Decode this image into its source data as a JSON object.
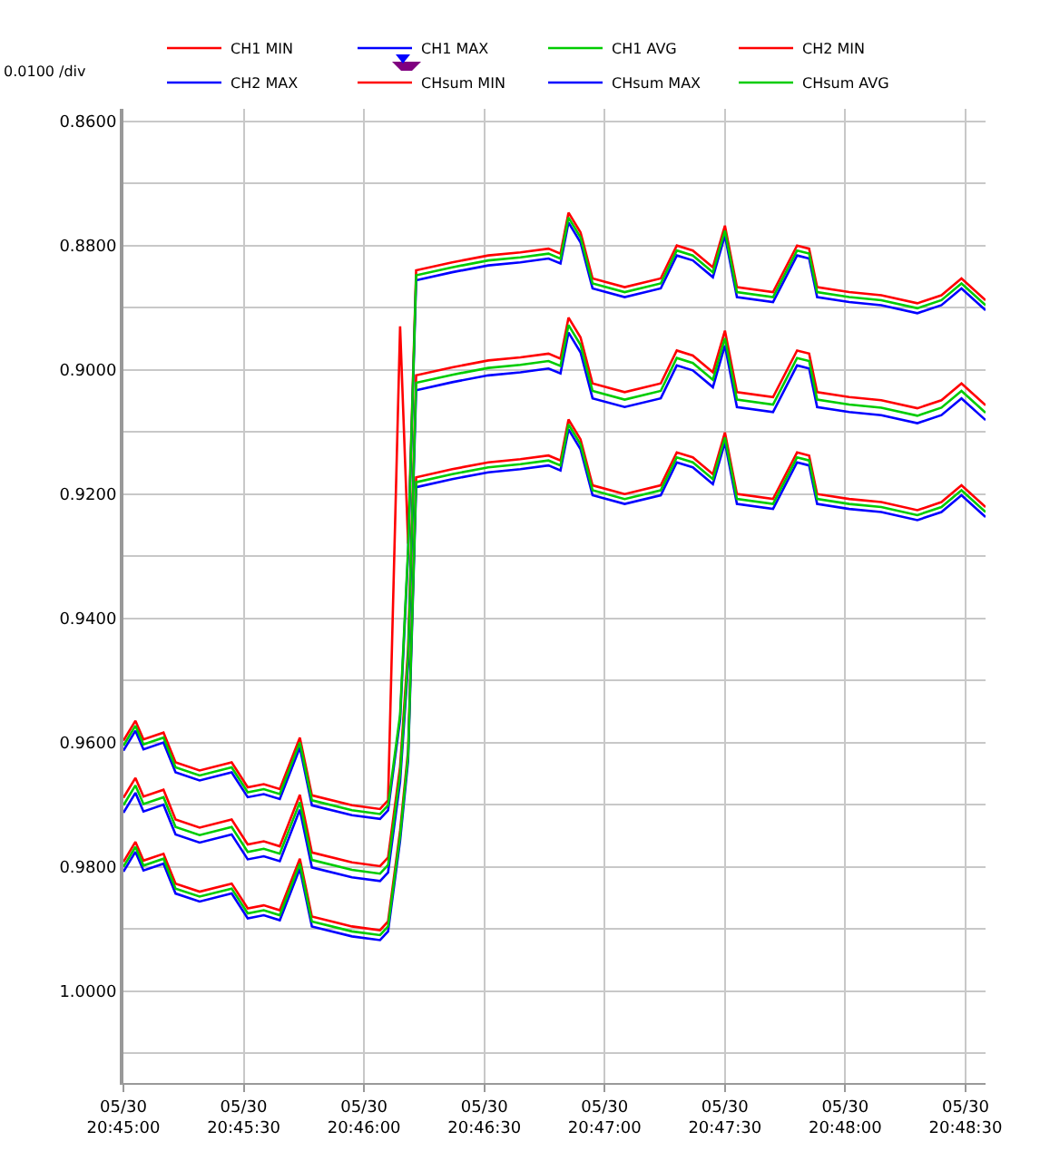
{
  "chart_data": {
    "type": "line",
    "annotations": [
      "0.0100 /div"
    ],
    "x": [
      "--05-30T20:45:00",
      "--05-30T20:45:03",
      "--05-30T20:45:05",
      "--05-30T20:45:10",
      "--05-30T20:45:13",
      "--05-30T20:45:19",
      "--05-30T20:45:27",
      "--05-30T20:45:31",
      "--05-30T20:45:35",
      "--05-30T20:45:39",
      "--05-30T20:45:44",
      "--05-30T20:45:47",
      "--05-30T20:45:57",
      "--05-30T20:46:04",
      "--05-30T20:46:06",
      "--05-30T20:46:09",
      "--05-30T20:46:11",
      "--05-30T20:46:13",
      "--05-30T20:46:22",
      "--05-30T20:46:31",
      "--05-30T20:46:39",
      "--05-30T20:46:46",
      "--05-30T20:46:49",
      "--05-30T20:46:51",
      "--05-30T20:46:54",
      "--05-30T20:46:57",
      "--05-30T20:47:05",
      "--05-30T20:47:14",
      "--05-30T20:47:18",
      "--05-30T20:47:22",
      "--05-30T20:47:27",
      "--05-30T20:47:30",
      "--05-30T20:47:33",
      "--05-30T20:47:42",
      "--05-30T20:47:48",
      "--05-30T20:47:51",
      "--05-30T20:47:53",
      "--05-30T20:48:01",
      "--05-30T20:48:09",
      "--05-30T20:48:18",
      "--05-30T20:48:24",
      "--05-30T20:48:29",
      "--05-30T20:48:35"
    ],
    "xlim": [
      "--05-30T20:45:00",
      "--05-30T20:48:35"
    ],
    "xticks": [
      {
        "value": "--05-30T20:45:00",
        "label": "05/30\n20:45:00"
      },
      {
        "value": "--05-30T20:45:30",
        "label": "05/30\n20:45:30"
      },
      {
        "value": "--05-30T20:46:00",
        "label": "05/30\n20:46:00"
      },
      {
        "value": "--05-30T20:46:30",
        "label": "05/30\n20:46:30"
      },
      {
        "value": "--05-30T20:47:00",
        "label": "05/30\n20:47:00"
      },
      {
        "value": "--05-30T20:47:30",
        "label": "05/30\n20:47:30"
      },
      {
        "value": "--05-30T20:48:00",
        "label": "05/30\n20:48:00"
      },
      {
        "value": "--05-30T20:48:30",
        "label": "05/30\n20:48:30"
      }
    ],
    "ylim": [
      1.0148,
      0.858
    ],
    "yticks": [
      {
        "value": 0.86,
        "label": "0.8600"
      },
      {
        "value": 0.87,
        "label": null
      },
      {
        "value": 0.88,
        "label": "0.8800"
      },
      {
        "value": 0.89,
        "label": null
      },
      {
        "value": 0.9,
        "label": "0.9000"
      },
      {
        "value": 0.91,
        "label": null
      },
      {
        "value": 0.92,
        "label": "0.9200"
      },
      {
        "value": 0.93,
        "label": null
      },
      {
        "value": 0.94,
        "label": "0.9400"
      },
      {
        "value": 0.95,
        "label": null
      },
      {
        "value": 0.96,
        "label": "0.9600"
      },
      {
        "value": 0.97,
        "label": null
      },
      {
        "value": 0.98,
        "label": "0.9800"
      },
      {
        "value": 0.99,
        "label": null
      },
      {
        "value": 1.0,
        "label": "1.0000"
      },
      {
        "value": 1.01,
        "label": null
      }
    ],
    "grid": true,
    "legend": "top",
    "marker": "none",
    "line_style": "solid",
    "series": [
      {
        "name": "CH1 MIN",
        "color": "#ff0000",
        "values": [
          0.9597,
          0.9565,
          0.9595,
          0.9584,
          0.9632,
          0.9645,
          0.9632,
          0.9672,
          0.9667,
          0.9675,
          0.9592,
          0.9685,
          0.9701,
          0.9707,
          0.9693,
          0.893,
          0.928,
          0.884,
          0.8827,
          0.8816,
          0.8811,
          0.8805,
          0.8813,
          0.8747,
          0.8779,
          0.8853,
          0.8867,
          0.8853,
          0.88,
          0.8808,
          0.8835,
          0.8768,
          0.8867,
          0.8875,
          0.88,
          0.8805,
          0.8867,
          0.8875,
          0.888,
          0.8893,
          0.888,
          0.8853,
          0.8888
        ]
      },
      {
        "name": "CH1 MAX",
        "color": "#0000ff",
        "values": [
          0.9613,
          0.9581,
          0.9611,
          0.96,
          0.9648,
          0.9661,
          0.9648,
          0.9688,
          0.9683,
          0.9691,
          0.9608,
          0.9701,
          0.9717,
          0.9723,
          0.9709,
          0.9563,
          0.9296,
          0.8856,
          0.8843,
          0.8832,
          0.8827,
          0.8821,
          0.8829,
          0.8763,
          0.8795,
          0.8869,
          0.8883,
          0.8869,
          0.8816,
          0.8824,
          0.8851,
          0.8784,
          0.8883,
          0.8891,
          0.8816,
          0.8821,
          0.8883,
          0.8891,
          0.8896,
          0.8909,
          0.8896,
          0.8869,
          0.8904
        ]
      },
      {
        "name": "CH1 AVG",
        "color": "#00cc00",
        "values": [
          0.9605,
          0.9573,
          0.9603,
          0.9592,
          0.964,
          0.9653,
          0.964,
          0.968,
          0.9675,
          0.9683,
          0.96,
          0.9693,
          0.9709,
          0.9715,
          0.9701,
          0.9555,
          0.9288,
          0.8848,
          0.8835,
          0.8824,
          0.8819,
          0.8813,
          0.8821,
          0.8755,
          0.8787,
          0.8861,
          0.8875,
          0.8861,
          0.8808,
          0.8816,
          0.8843,
          0.8776,
          0.8875,
          0.8883,
          0.8808,
          0.8813,
          0.8875,
          0.8883,
          0.8888,
          0.8901,
          0.8888,
          0.8861,
          0.8896
        ]
      },
      {
        "name": "CH2 MIN",
        "color": "#ff0000",
        "values": [
          0.9689,
          0.9657,
          0.9687,
          0.9676,
          0.9724,
          0.9737,
          0.9724,
          0.9764,
          0.9759,
          0.9767,
          0.9684,
          0.9777,
          0.9793,
          0.9799,
          0.9785,
          0.9639,
          0.9449,
          0.9009,
          0.8996,
          0.8985,
          0.898,
          0.8974,
          0.8982,
          0.8916,
          0.8948,
          0.9022,
          0.9036,
          0.9022,
          0.8969,
          0.8977,
          0.9004,
          0.8937,
          0.9036,
          0.9044,
          0.8969,
          0.8974,
          0.9036,
          0.9044,
          0.9049,
          0.9062,
          0.9049,
          0.9022,
          0.9057
        ]
      },
      {
        "name": "CH2 MAX",
        "color": "#0000ff",
        "values": [
          0.9713,
          0.9681,
          0.9711,
          0.97,
          0.9748,
          0.9761,
          0.9748,
          0.9788,
          0.9783,
          0.9791,
          0.9708,
          0.9801,
          0.9817,
          0.9823,
          0.9809,
          0.9663,
          0.9473,
          0.9033,
          0.902,
          0.9009,
          0.9004,
          0.8998,
          0.9006,
          0.894,
          0.8972,
          0.9046,
          0.906,
          0.9046,
          0.8993,
          0.9001,
          0.9028,
          0.8961,
          0.906,
          0.9068,
          0.8993,
          0.8998,
          0.906,
          0.9068,
          0.9073,
          0.9086,
          0.9073,
          0.9046,
          0.9081
        ]
      },
      {
        "color": "#00cc00",
        "values": [
          0.9701,
          0.9669,
          0.9699,
          0.9688,
          0.9736,
          0.9749,
          0.9736,
          0.9776,
          0.9771,
          0.9779,
          0.9696,
          0.9789,
          0.9805,
          0.9811,
          0.9797,
          0.9651,
          0.9461,
          0.9021,
          0.9008,
          0.8997,
          0.8992,
          0.8986,
          0.8994,
          0.8928,
          0.896,
          0.9034,
          0.9048,
          0.9034,
          0.8981,
          0.8989,
          0.9016,
          0.8949,
          0.9048,
          0.9056,
          0.8981,
          0.8986,
          0.9048,
          0.9056,
          0.9061,
          0.9074,
          0.9061,
          0.9034,
          0.9069
        ]
      },
      {
        "name": "CHsum MIN",
        "color": "#ff0000",
        "values": [
          0.9792,
          0.976,
          0.979,
          0.9779,
          0.9827,
          0.984,
          0.9827,
          0.9867,
          0.9862,
          0.987,
          0.9787,
          0.988,
          0.9896,
          0.9902,
          0.9888,
          0.9742,
          0.9613,
          0.9173,
          0.916,
          0.9149,
          0.9144,
          0.9138,
          0.9146,
          0.908,
          0.9112,
          0.9186,
          0.92,
          0.9186,
          0.9133,
          0.9141,
          0.9168,
          0.9101,
          0.92,
          0.9208,
          0.9133,
          0.9138,
          0.92,
          0.9208,
          0.9213,
          0.9226,
          0.9213,
          0.9186,
          0.9221
        ]
      },
      {
        "name": "CHsum MAX",
        "color": "#0000ff",
        "values": [
          0.9808,
          0.9776,
          0.9806,
          0.9795,
          0.9843,
          0.9856,
          0.9843,
          0.9883,
          0.9878,
          0.9886,
          0.9803,
          0.9896,
          0.9912,
          0.9918,
          0.9904,
          0.9758,
          0.9629,
          0.9189,
          0.9176,
          0.9165,
          0.916,
          0.9154,
          0.9162,
          0.9096,
          0.9128,
          0.9202,
          0.9216,
          0.9202,
          0.9149,
          0.9157,
          0.9184,
          0.9117,
          0.9216,
          0.9224,
          0.9149,
          0.9154,
          0.9216,
          0.9224,
          0.9229,
          0.9242,
          0.9229,
          0.9202,
          0.9237
        ]
      },
      {
        "name": "CHsum AVG",
        "color": "#00cc00",
        "values": [
          0.98,
          0.9768,
          0.9798,
          0.9787,
          0.9835,
          0.9848,
          0.9835,
          0.9875,
          0.987,
          0.9878,
          0.9795,
          0.9888,
          0.9904,
          0.991,
          0.9896,
          0.975,
          0.9621,
          0.9181,
          0.9168,
          0.9157,
          0.9152,
          0.9146,
          0.9154,
          0.9088,
          0.912,
          0.9194,
          0.9208,
          0.9194,
          0.9141,
          0.9149,
          0.9176,
          0.9109,
          0.9208,
          0.9216,
          0.9141,
          0.9146,
          0.9208,
          0.9216,
          0.9221,
          0.9234,
          0.9221,
          0.9194,
          0.9229
        ]
      }
    ]
  }
}
